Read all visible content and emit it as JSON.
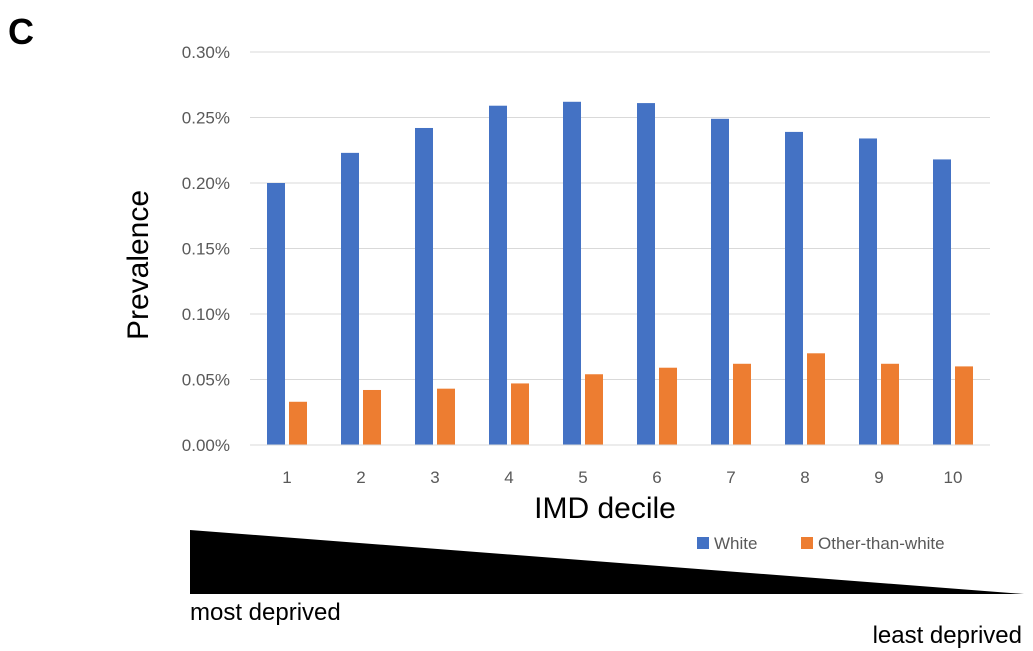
{
  "panel_label": "C",
  "chart_data": {
    "type": "bar",
    "title": "",
    "xlabel": "IMD decile",
    "ylabel": "Prevalence",
    "categories": [
      "1",
      "2",
      "3",
      "4",
      "5",
      "6",
      "7",
      "8",
      "9",
      "10"
    ],
    "series": [
      {
        "name": "White",
        "color": "#4472C4",
        "values": [
          0.2,
          0.223,
          0.242,
          0.259,
          0.262,
          0.261,
          0.249,
          0.239,
          0.234,
          0.218
        ]
      },
      {
        "name": "Other-than-white",
        "color": "#ED7D31",
        "values": [
          0.033,
          0.042,
          0.043,
          0.047,
          0.054,
          0.059,
          0.062,
          0.07,
          0.062,
          0.06
        ]
      }
    ],
    "ylim": [
      0,
      0.3
    ],
    "yticks": [
      "0.00%",
      "0.05%",
      "0.10%",
      "0.15%",
      "0.20%",
      "0.25%",
      "0.30%"
    ],
    "value_unit": "percent",
    "grid": "horizontal",
    "legend_position": "bottom-right"
  },
  "deprivation_scale": {
    "left_label": "most deprived",
    "right_label": "least deprived"
  }
}
